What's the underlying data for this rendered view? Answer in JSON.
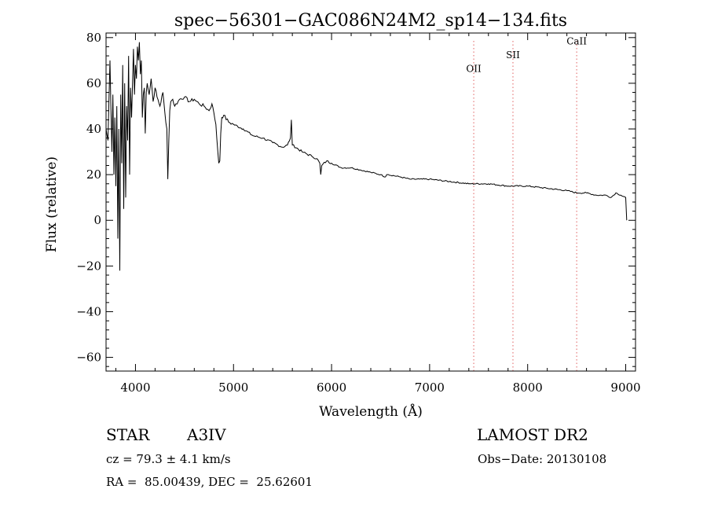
{
  "chart_data": {
    "type": "line",
    "title": "spec−56301−GAC086N24M2_sp14−134.fits",
    "xlabel": "Wavelength (Å)",
    "ylabel": "Flux (relative)",
    "xlim": [
      3700,
      9100
    ],
    "ylim": [
      -66,
      82
    ],
    "xticks": [
      4000,
      5000,
      6000,
      7000,
      8000,
      9000
    ],
    "xtick_labels": [
      "4000",
      "5000",
      "6000",
      "7000",
      "8000",
      "9000"
    ],
    "yticks": [
      -60,
      -40,
      -20,
      0,
      20,
      40,
      60,
      80
    ],
    "ytick_labels": [
      "−60",
      "−40",
      "−20",
      "0",
      "20",
      "40",
      "60",
      "80"
    ],
    "grid": false,
    "line_color": "#000000",
    "marker_color": "#e06060",
    "series": [
      {
        "x": [
          3700,
          3720,
          3740,
          3760,
          3770,
          3780,
          3790,
          3800,
          3810,
          3820,
          3830,
          3840,
          3850,
          3860,
          3870,
          3880,
          3890,
          3900,
          3910,
          3920,
          3930,
          3940,
          3950,
          3960,
          3970,
          3980,
          3990,
          4000,
          4010,
          4020,
          4030,
          4040,
          4050,
          4060,
          4070,
          4080,
          4090,
          4100,
          4110,
          4120,
          4140,
          4160,
          4180,
          4200,
          4220,
          4250,
          4280,
          4300,
          4320,
          4330,
          4340,
          4350,
          4360,
          4380,
          4400,
          4450,
          4500,
          4550,
          4600,
          4650,
          4700,
          4750,
          4780,
          4800,
          4820,
          4840,
          4850,
          4860,
          4870,
          4880,
          4900,
          4950,
          5000,
          5100,
          5200,
          5300,
          5400,
          5500,
          5550,
          5580,
          5590,
          5600,
          5700,
          5800,
          5850,
          5880,
          5890,
          5900,
          5950,
          6000,
          6100,
          6200,
          6300,
          6400,
          6500,
          6550,
          6563,
          6580,
          6700,
          6800,
          6900,
          7000,
          7200,
          7400,
          7600,
          7800,
          8000,
          8200,
          8400,
          8500,
          8600,
          8700,
          8800,
          8850,
          8900,
          8950,
          9000,
          9010
        ],
        "y": [
          40,
          35,
          70,
          30,
          55,
          20,
          45,
          15,
          50,
          -8,
          40,
          -22,
          55,
          25,
          68,
          5,
          60,
          10,
          50,
          35,
          72,
          20,
          58,
          45,
          60,
          75,
          55,
          68,
          62,
          76,
          70,
          78,
          64,
          70,
          45,
          55,
          58,
          38,
          56,
          60,
          55,
          62,
          52,
          58,
          54,
          50,
          56,
          47,
          40,
          18,
          35,
          48,
          52,
          53,
          50,
          53,
          54,
          52,
          53,
          51,
          50,
          48,
          51,
          47,
          42,
          30,
          25,
          26,
          38,
          45,
          46,
          43,
          42,
          40,
          37,
          36,
          34,
          32,
          33,
          36,
          44,
          33,
          30,
          28,
          27,
          25,
          20,
          24,
          26,
          25,
          23,
          23,
          22,
          21,
          20,
          19,
          20,
          20,
          19,
          18,
          18,
          18,
          17,
          16,
          16,
          15,
          15,
          14,
          13,
          12,
          12,
          11,
          11,
          10,
          12,
          11,
          10,
          0
        ]
      }
    ],
    "annotations": [
      {
        "label": "OII",
        "x": 7450,
        "label_y": 65
      },
      {
        "label": "SII",
        "x": 7850,
        "label_y": 71
      },
      {
        "label": "CaII",
        "x": 8500,
        "label_y": 77
      }
    ]
  },
  "info": {
    "object_type": "STAR",
    "subclass": "A3IV",
    "survey": "LAMOST DR2",
    "cz": "cz = 79.3 ± 4.1 km/s",
    "obs_date": "Obs−Date: 20130108",
    "coords": "RA =  85.00439, DEC =  25.62601"
  }
}
